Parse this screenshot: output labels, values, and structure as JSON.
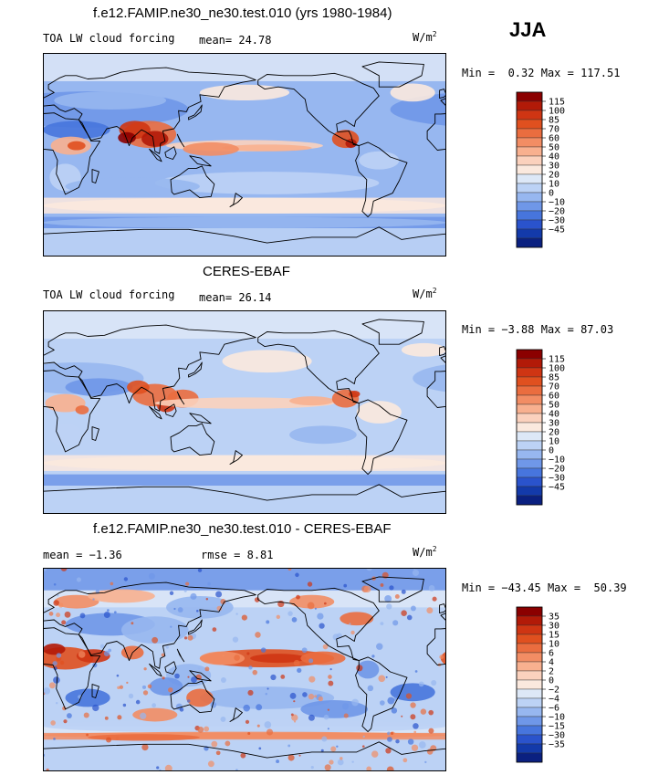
{
  "figure": {
    "season": "JJA",
    "units_base": "W/m",
    "units_sup": "2"
  },
  "chart_data": [
    {
      "type": "heatmap",
      "title": "f.e12.FAMIP.ne30_ne30.test.010 (yrs 1980-1984)",
      "left_label": "TOA LW cloud forcing",
      "stat1_label": "mean=",
      "stat1_value": "24.78",
      "stat2_label": "",
      "stat2_value": "",
      "min_label": "Min =",
      "min_value": "0.32",
      "max_label": "Max =",
      "max_value": "117.51",
      "mode": "model",
      "levels": [
        "115",
        "100",
        "85",
        "70",
        "60",
        "50",
        "40",
        "30",
        "20",
        "10",
        "0",
        "−10",
        "−20",
        "−30",
        "−45"
      ],
      "colors": [
        "#8b0000",
        "#b21a08",
        "#cf3513",
        "#e0501f",
        "#ea6d3f",
        "#f28d64",
        "#f8b08f",
        "#fbd1bd",
        "#fbe9de",
        "#dde8f7",
        "#bcd2f5",
        "#97b7f0",
        "#6f97e8",
        "#4775dd",
        "#2a53cc",
        "#133aaa",
        "#0a2080"
      ]
    },
    {
      "type": "heatmap",
      "title": "CERES-EBAF",
      "left_label": "TOA LW cloud forcing",
      "stat1_label": "mean=",
      "stat1_value": "26.14",
      "stat2_label": "",
      "stat2_value": "",
      "min_label": "Min =",
      "min_value": "−3.88",
      "max_label": "Max =",
      "max_value": "87.03",
      "mode": "obs",
      "levels": [
        "115",
        "100",
        "85",
        "70",
        "60",
        "50",
        "40",
        "30",
        "20",
        "10",
        "0",
        "−10",
        "−20",
        "−30",
        "−45"
      ],
      "colors": [
        "#8b0000",
        "#b21a08",
        "#cf3513",
        "#e0501f",
        "#ea6d3f",
        "#f28d64",
        "#f8b08f",
        "#fbd1bd",
        "#fbe9de",
        "#dde8f7",
        "#bcd2f5",
        "#97b7f0",
        "#6f97e8",
        "#4775dd",
        "#2a53cc",
        "#133aaa",
        "#0a2080"
      ]
    },
    {
      "type": "heatmap",
      "title": "f.e12.FAMIP.ne30_ne30.test.010 - CERES-EBAF",
      "left_label": "",
      "stat1_label": "mean =",
      "stat1_value": "−1.36",
      "stat2_label": "rmse =",
      "stat2_value": "8.81",
      "min_label": "Min =",
      "min_value": "−43.45",
      "max_label": "Max =",
      "max_value": "50.39",
      "mode": "diff",
      "levels": [
        "35",
        "30",
        "15",
        "10",
        "6",
        "4",
        "2",
        "0",
        "−2",
        "−4",
        "−6",
        "−10",
        "−15",
        "−30",
        "−35"
      ],
      "colors": [
        "#8b0000",
        "#b21a08",
        "#cf3513",
        "#e0501f",
        "#ea6d3f",
        "#f28d64",
        "#f8b08f",
        "#fbd1bd",
        "#fbe9de",
        "#dde8f7",
        "#bcd2f5",
        "#97b7f0",
        "#6f97e8",
        "#4775dd",
        "#2a53cc",
        "#133aaa",
        "#0a2080"
      ]
    }
  ]
}
